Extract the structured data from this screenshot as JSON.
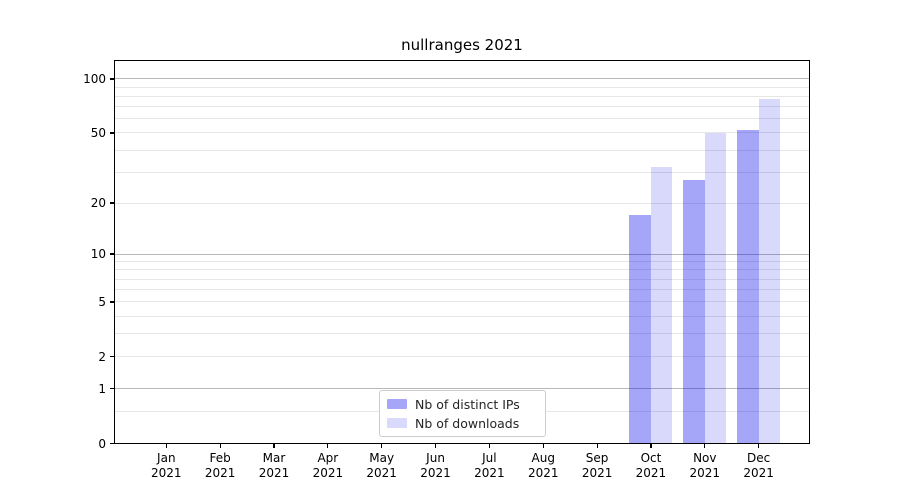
{
  "chart_data": {
    "type": "bar",
    "title": "nullranges 2021",
    "xlabel": "",
    "ylabel": "",
    "y_scale": "log1p",
    "ylim": [
      0,
      127.4
    ],
    "y_labeled_ticks": [
      0,
      1,
      2,
      5,
      10,
      20,
      50,
      100
    ],
    "y_major_gridlines": [
      1,
      10,
      100
    ],
    "y_minor_gridlines": [
      0.5,
      2,
      3,
      4,
      5,
      6,
      7,
      8,
      9,
      20,
      30,
      40,
      50,
      60,
      70,
      80,
      90
    ],
    "grid": true,
    "categories": [
      {
        "month": "Jan",
        "year": "2021"
      },
      {
        "month": "Feb",
        "year": "2021"
      },
      {
        "month": "Mar",
        "year": "2021"
      },
      {
        "month": "Apr",
        "year": "2021"
      },
      {
        "month": "May",
        "year": "2021"
      },
      {
        "month": "Jun",
        "year": "2021"
      },
      {
        "month": "Jul",
        "year": "2021"
      },
      {
        "month": "Aug",
        "year": "2021"
      },
      {
        "month": "Sep",
        "year": "2021"
      },
      {
        "month": "Oct",
        "year": "2021"
      },
      {
        "month": "Nov",
        "year": "2021"
      },
      {
        "month": "Dec",
        "year": "2021"
      }
    ],
    "series": [
      {
        "name": "Nb of distinct IPs",
        "color": "rgba(0,0,235,0.35)",
        "color_hex": "#a6a6f8",
        "values": [
          null,
          null,
          null,
          null,
          null,
          null,
          null,
          null,
          null,
          17,
          27,
          52
        ]
      },
      {
        "name": "Nb of downloads",
        "color": "rgba(0,0,235,0.15)",
        "color_hex": "#d9d9fc",
        "values": [
          null,
          null,
          null,
          null,
          null,
          null,
          null,
          null,
          null,
          32,
          50,
          77
        ]
      }
    ],
    "legend": {
      "position": "lower-center"
    },
    "colors": {
      "spine": "#000000",
      "grid_major": "#b8b8b8",
      "grid_minor": "#e6e6e6",
      "legend_border": "#cccccc",
      "text": "#000000"
    }
  }
}
